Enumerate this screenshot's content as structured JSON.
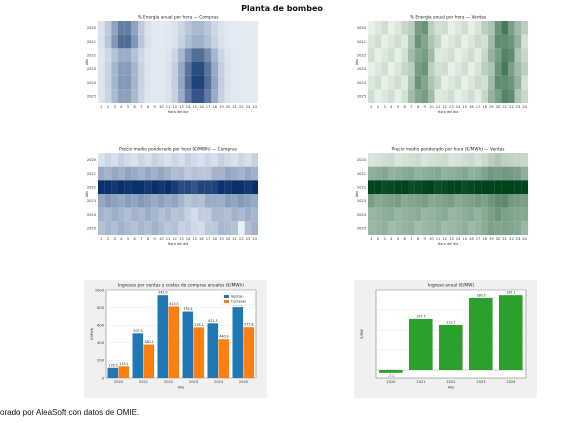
{
  "page": {
    "title": "Planta de bombeo",
    "caption": "orado por AleaSoft con datos de OMIE."
  },
  "heatmaps": [
    {
      "id": "energy-buy",
      "title": "% Energía anual por hora — Compras",
      "xlabel": "Hora del día",
      "ylabel": "Año",
      "years": [
        "2020",
        "2021",
        "2022",
        "2023",
        "2024",
        "2025"
      ],
      "hours": [
        "1",
        "2",
        "3",
        "4",
        "5",
        "6",
        "7",
        "8",
        "9",
        "10",
        "11",
        "12",
        "13",
        "14",
        "15",
        "16",
        "17",
        "18",
        "19",
        "20",
        "21",
        "22",
        "23",
        "24"
      ],
      "palette": "blue"
    },
    {
      "id": "energy-sell",
      "title": "% Energía anual por hora — Ventas",
      "xlabel": "Hora del día",
      "ylabel": "Año",
      "years": [
        "2020",
        "2021",
        "2022",
        "2023",
        "2024",
        "2025"
      ],
      "hours": [
        "1",
        "2",
        "3",
        "4",
        "5",
        "6",
        "7",
        "8",
        "9",
        "10",
        "11",
        "12",
        "13",
        "14",
        "15",
        "16",
        "17",
        "18",
        "19",
        "20",
        "21",
        "22",
        "23",
        "24"
      ],
      "palette": "green"
    },
    {
      "id": "price-buy",
      "title": "Precio medio ponderado por hora (€/MWh) — Compras",
      "xlabel": "Hora del día",
      "ylabel": "Año",
      "years": [
        "2020",
        "2021",
        "2022",
        "2023",
        "2024",
        "2025"
      ],
      "hours": [
        "1",
        "2",
        "3",
        "4",
        "5",
        "6",
        "7",
        "8",
        "9",
        "10",
        "11",
        "12",
        "13",
        "14",
        "15",
        "16",
        "17",
        "18",
        "19",
        "20",
        "21",
        "22",
        "23",
        "24"
      ],
      "palette": "blue"
    },
    {
      "id": "price-sell",
      "title": "Precio medio ponderado por hora (€/MWh) — Ventas",
      "xlabel": "Hora del día",
      "ylabel": "Año",
      "years": [
        "2020",
        "2021",
        "2022",
        "2023",
        "2024",
        "2025"
      ],
      "hours": [
        "1",
        "2",
        "3",
        "4",
        "5",
        "6",
        "7",
        "8",
        "9",
        "10",
        "11",
        "12",
        "13",
        "14",
        "15",
        "16",
        "17",
        "18",
        "19",
        "20",
        "21",
        "22",
        "23",
        "24"
      ],
      "palette": "green"
    }
  ],
  "colors": {
    "blue_dark": "#08306b",
    "blue_light": "#f7fbff",
    "green_dark": "#00441b",
    "green_light": "#f7fcf5",
    "ventas": "#1f77b4",
    "compras": "#ff7f0e",
    "bar_green": "#2ca02c"
  },
  "chart_data": [
    {
      "type": "bar",
      "title": "Ingresos por ventas y costes de compras anuales (€/MWh)",
      "xlabel": "Año",
      "ylabel": "€/MWh",
      "categories": [
        "2020",
        "2021",
        "2022",
        "2023",
        "2024",
        "2025"
      ],
      "series": [
        {
          "name": "Ventas",
          "values": [
            116.3,
            507.9,
            941.0,
            755.4,
            621.3,
            805.3
          ],
          "labels": [
            "116.3",
            "507.9",
            "941.0",
            "755.4",
            "621.3",
            "805.3"
          ]
        },
        {
          "name": "Compras",
          "values": [
            133.1,
            380.1,
            813.5,
            575.1,
            440.9,
            577.8
          ],
          "labels": [
            "133.1",
            "380.1",
            "813.5",
            "575.1",
            "440.9",
            "577.8"
          ]
        }
      ],
      "ylim": [
        0,
        1000
      ],
      "yticks": [
        "0",
        "200",
        "400",
        "600",
        "800",
        "1000"
      ],
      "legend": "top-right",
      "grid": true
    },
    {
      "type": "bar",
      "title": "Ingreso anual (€/MW)",
      "xlabel": "Año",
      "ylabel": "€/MW",
      "categories": [
        "2020",
        "2021",
        "2022",
        "2023",
        "2024"
      ],
      "series": [
        {
          "values": [
            -7.1,
            127.7,
            112.7,
            180.3,
            187.1
          ],
          "labels": [
            "-7.1",
            "127.7",
            "112.7",
            "180.3",
            "187.1"
          ]
        }
      ],
      "ylim": [
        -20,
        200
      ],
      "yticks": [],
      "grid": true
    }
  ]
}
